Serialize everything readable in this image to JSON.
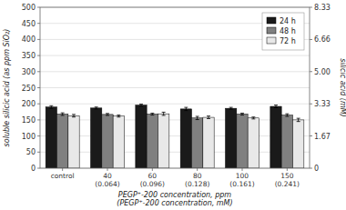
{
  "chart_data": {
    "type": "bar",
    "categories": [
      "control",
      "40\n(0.064)",
      "60\n(0.096)",
      "80\n(0.128)",
      "100\n(0.161)",
      "150\n(0.241)"
    ],
    "series": [
      {
        "name": "24 h",
        "color": "#1a1a1a",
        "values": [
          190,
          187,
          196,
          184,
          186,
          192
        ],
        "errors": [
          4,
          3,
          3,
          5,
          3,
          4
        ]
      },
      {
        "name": "48 h",
        "color": "#808080",
        "values": [
          168,
          167,
          168,
          156,
          168,
          165
        ],
        "errors": [
          4,
          3,
          3,
          5,
          3,
          4
        ]
      },
      {
        "name": "72 h",
        "color": "#e8e8e8",
        "values": [
          163,
          162,
          169,
          158,
          156,
          150
        ],
        "errors": [
          4,
          3,
          5,
          4,
          3,
          5
        ]
      }
    ],
    "xlabel": "PEGP⁺-200 concentration, ppm\n(PEGP⁺-200 concentration, mM)",
    "ylabel": "soluble silicic acid (as ppm SiO₂)",
    "y2label": "silicic acid (mM)",
    "ylim": [
      0,
      500
    ],
    "yticks": [
      0,
      50,
      100,
      150,
      200,
      250,
      300,
      350,
      400,
      450,
      500
    ],
    "y2lim": [
      0,
      8.33
    ],
    "y2ticks": [
      0,
      1.67,
      3.33,
      {
        "value": 5.0,
        "label": "5.00"
      },
      6.66,
      8.33
    ],
    "grid": true,
    "legend": "upper right"
  }
}
